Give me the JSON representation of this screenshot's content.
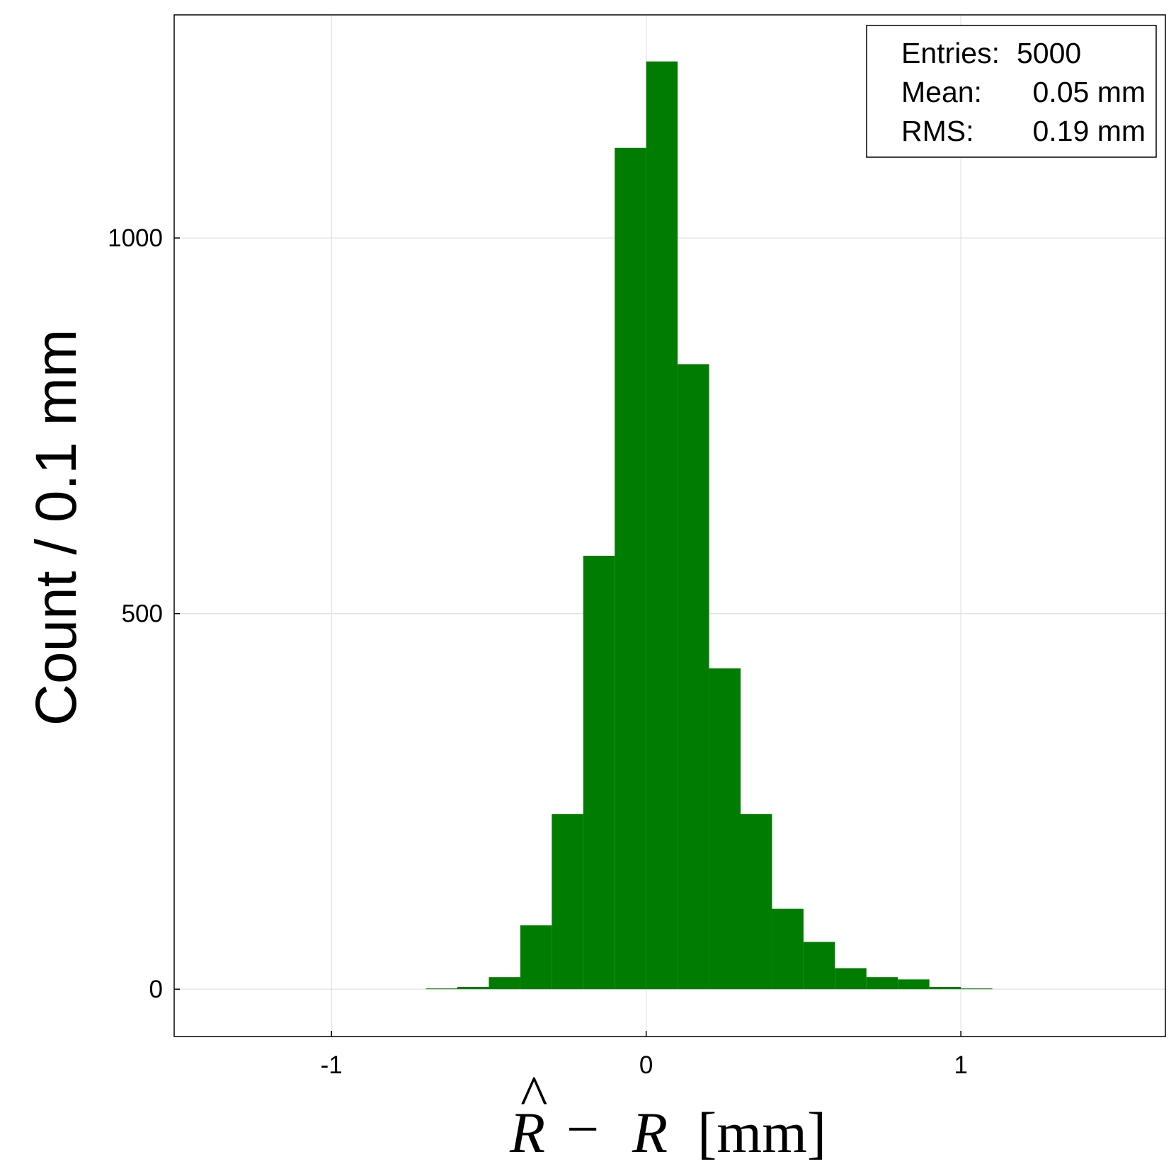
{
  "chart_data": {
    "type": "bar",
    "subtype": "histogram",
    "bin_width": 0.1,
    "bin_edges": [
      -0.7,
      -0.6,
      -0.5,
      -0.4,
      -0.3,
      -0.2,
      -0.1,
      0.0,
      0.1,
      0.2,
      0.3,
      0.4,
      0.5,
      0.6,
      0.7,
      0.8,
      0.9,
      1.0,
      1.1
    ],
    "values": [
      1,
      3,
      16,
      85,
      233,
      577,
      1120,
      1235,
      832,
      427,
      233,
      107,
      63,
      28,
      16,
      13,
      3,
      1
    ],
    "xlim": [
      -1.5,
      1.65
    ],
    "ylim": [
      -63,
      1297
    ],
    "xticks": [
      {
        "value": -1,
        "label": "-1"
      },
      {
        "value": 0,
        "label": "0"
      },
      {
        "value": 1,
        "label": "1"
      }
    ],
    "yticks": [
      {
        "value": 0,
        "label": "0"
      },
      {
        "value": 500,
        "label": "500"
      },
      {
        "value": 1000,
        "label": "1000"
      }
    ],
    "xlabel": {
      "rhat": "R",
      "hat": "^",
      "minus": "−",
      "r": "R",
      "unit": "[mm]"
    },
    "ylabel": "Count / 0.1 mm",
    "grid": true,
    "bar_color": "#007c00",
    "stats_box": {
      "placement": "top-right",
      "entries_label": "Entries:",
      "entries_value": "5000",
      "mean_label": "Mean:",
      "mean_value": "0.05 mm",
      "rms_label": "RMS:",
      "rms_value": "0.19 mm"
    }
  }
}
